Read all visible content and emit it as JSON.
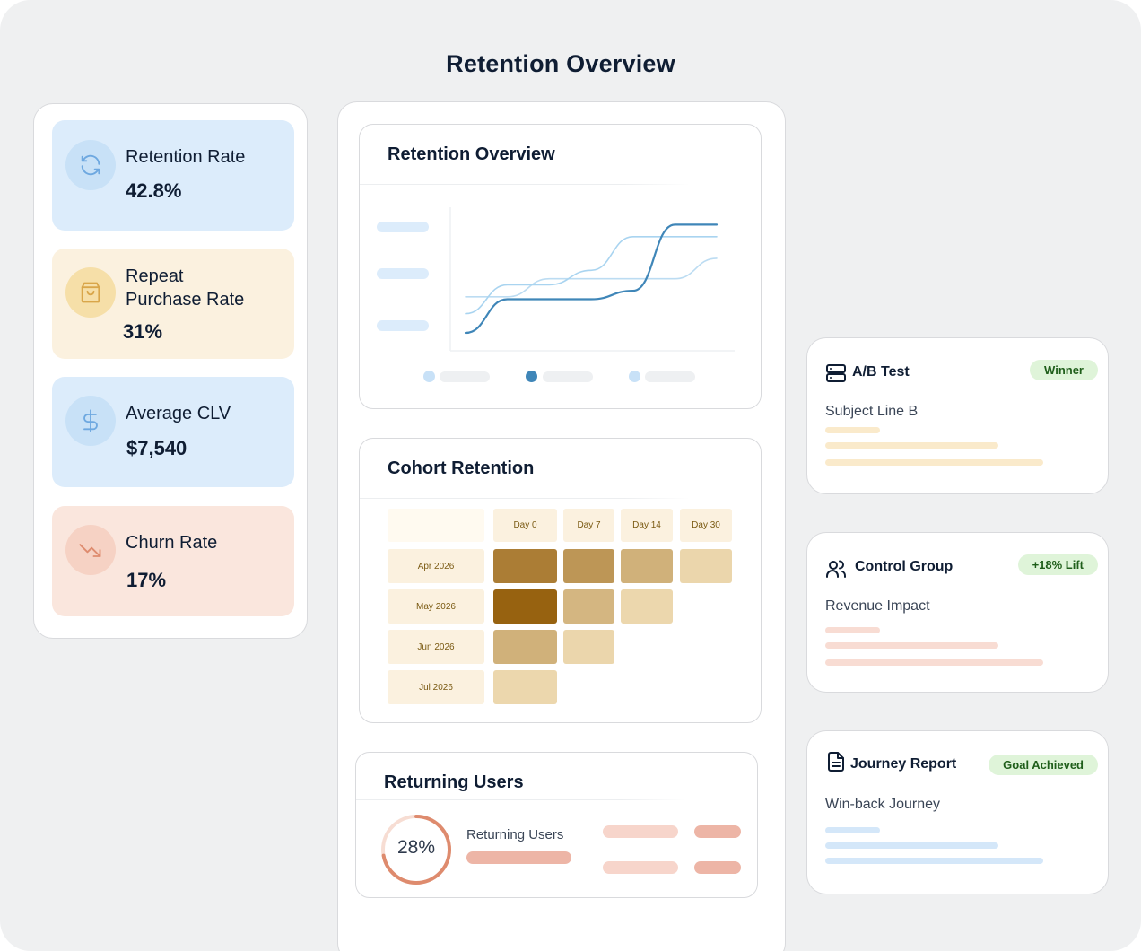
{
  "page": {
    "title": "Retention Overview"
  },
  "metrics": [
    {
      "label": "Retention Rate",
      "value": "42.8%",
      "icon": "refresh-icon",
      "bg": "#dcecfb",
      "icon_bg": "#c8e1f7",
      "icon_color": "#6ea8e0"
    },
    {
      "label_line1": "Repeat",
      "label_line2": "Purchase Rate",
      "value": "31%",
      "icon": "shopping-bag-icon",
      "bg": "#fbf1df",
      "icon_bg": "#f6dfa8",
      "icon_color": "#d9a64a"
    },
    {
      "label": "Average CLV",
      "value": "$7,540",
      "icon": "dollar-icon",
      "bg": "#dcecfb",
      "icon_bg": "#c8e1f7",
      "icon_color": "#6ea8e0"
    },
    {
      "label": "Churn Rate",
      "value": "17%",
      "icon": "trending-down-icon",
      "bg": "#fae6dd",
      "icon_bg": "#f6d2c4",
      "icon_color": "#de8b6e"
    }
  ],
  "overview_card": {
    "title": "Retention Overview",
    "chart_data": {
      "type": "line",
      "series": [
        {
          "values": [
            0.0,
            0.28,
            0.28,
            0.28,
            0.35,
            0.9,
            0.9
          ]
        },
        {
          "values": [
            0.16,
            0.4,
            0.4,
            0.52,
            0.8,
            0.8,
            0.8
          ]
        },
        {
          "values": [
            0.3,
            0.3,
            0.45,
            0.45,
            0.45,
            0.45,
            0.62
          ]
        }
      ],
      "colors": [
        "#3f86b8",
        "#a9d4f0",
        "#bcdcf2"
      ],
      "grid": false
    }
  },
  "cohort_card": {
    "title": "Cohort Retention",
    "chart_data": {
      "type": "heatmap",
      "columns": [
        "Day 0",
        "Day 7",
        "Day 14",
        "Day 30"
      ],
      "rows": [
        "Apr 2026",
        "May 2026",
        "Jun 2026",
        "Jul 2026"
      ],
      "intensity": [
        [
          0.8,
          0.62,
          0.42,
          0.15
        ],
        [
          1.0,
          0.38,
          0.14,
          null
        ],
        [
          0.42,
          0.15,
          null,
          null
        ],
        [
          0.14,
          null,
          null,
          null
        ]
      ]
    }
  },
  "returning_card": {
    "title": "Returning Users",
    "percent_label": "28%",
    "progress": 0.72,
    "label": "Returning Users"
  },
  "right_cards": [
    {
      "title": "A/B Test",
      "badge": "Winner",
      "subtitle": "Subject Line B",
      "icon": "server-icon",
      "bar_color": "#faeacb"
    },
    {
      "title": "Control Group",
      "badge": "+18% Lift",
      "subtitle": "Revenue Impact",
      "icon": "users-icon",
      "bar_color": "#f8dcd3"
    },
    {
      "title": "Journey Report",
      "badge": "Goal Achieved",
      "subtitle": "Win-back Journey",
      "icon": "document-icon",
      "bar_color": "#d4e7f9"
    }
  ]
}
